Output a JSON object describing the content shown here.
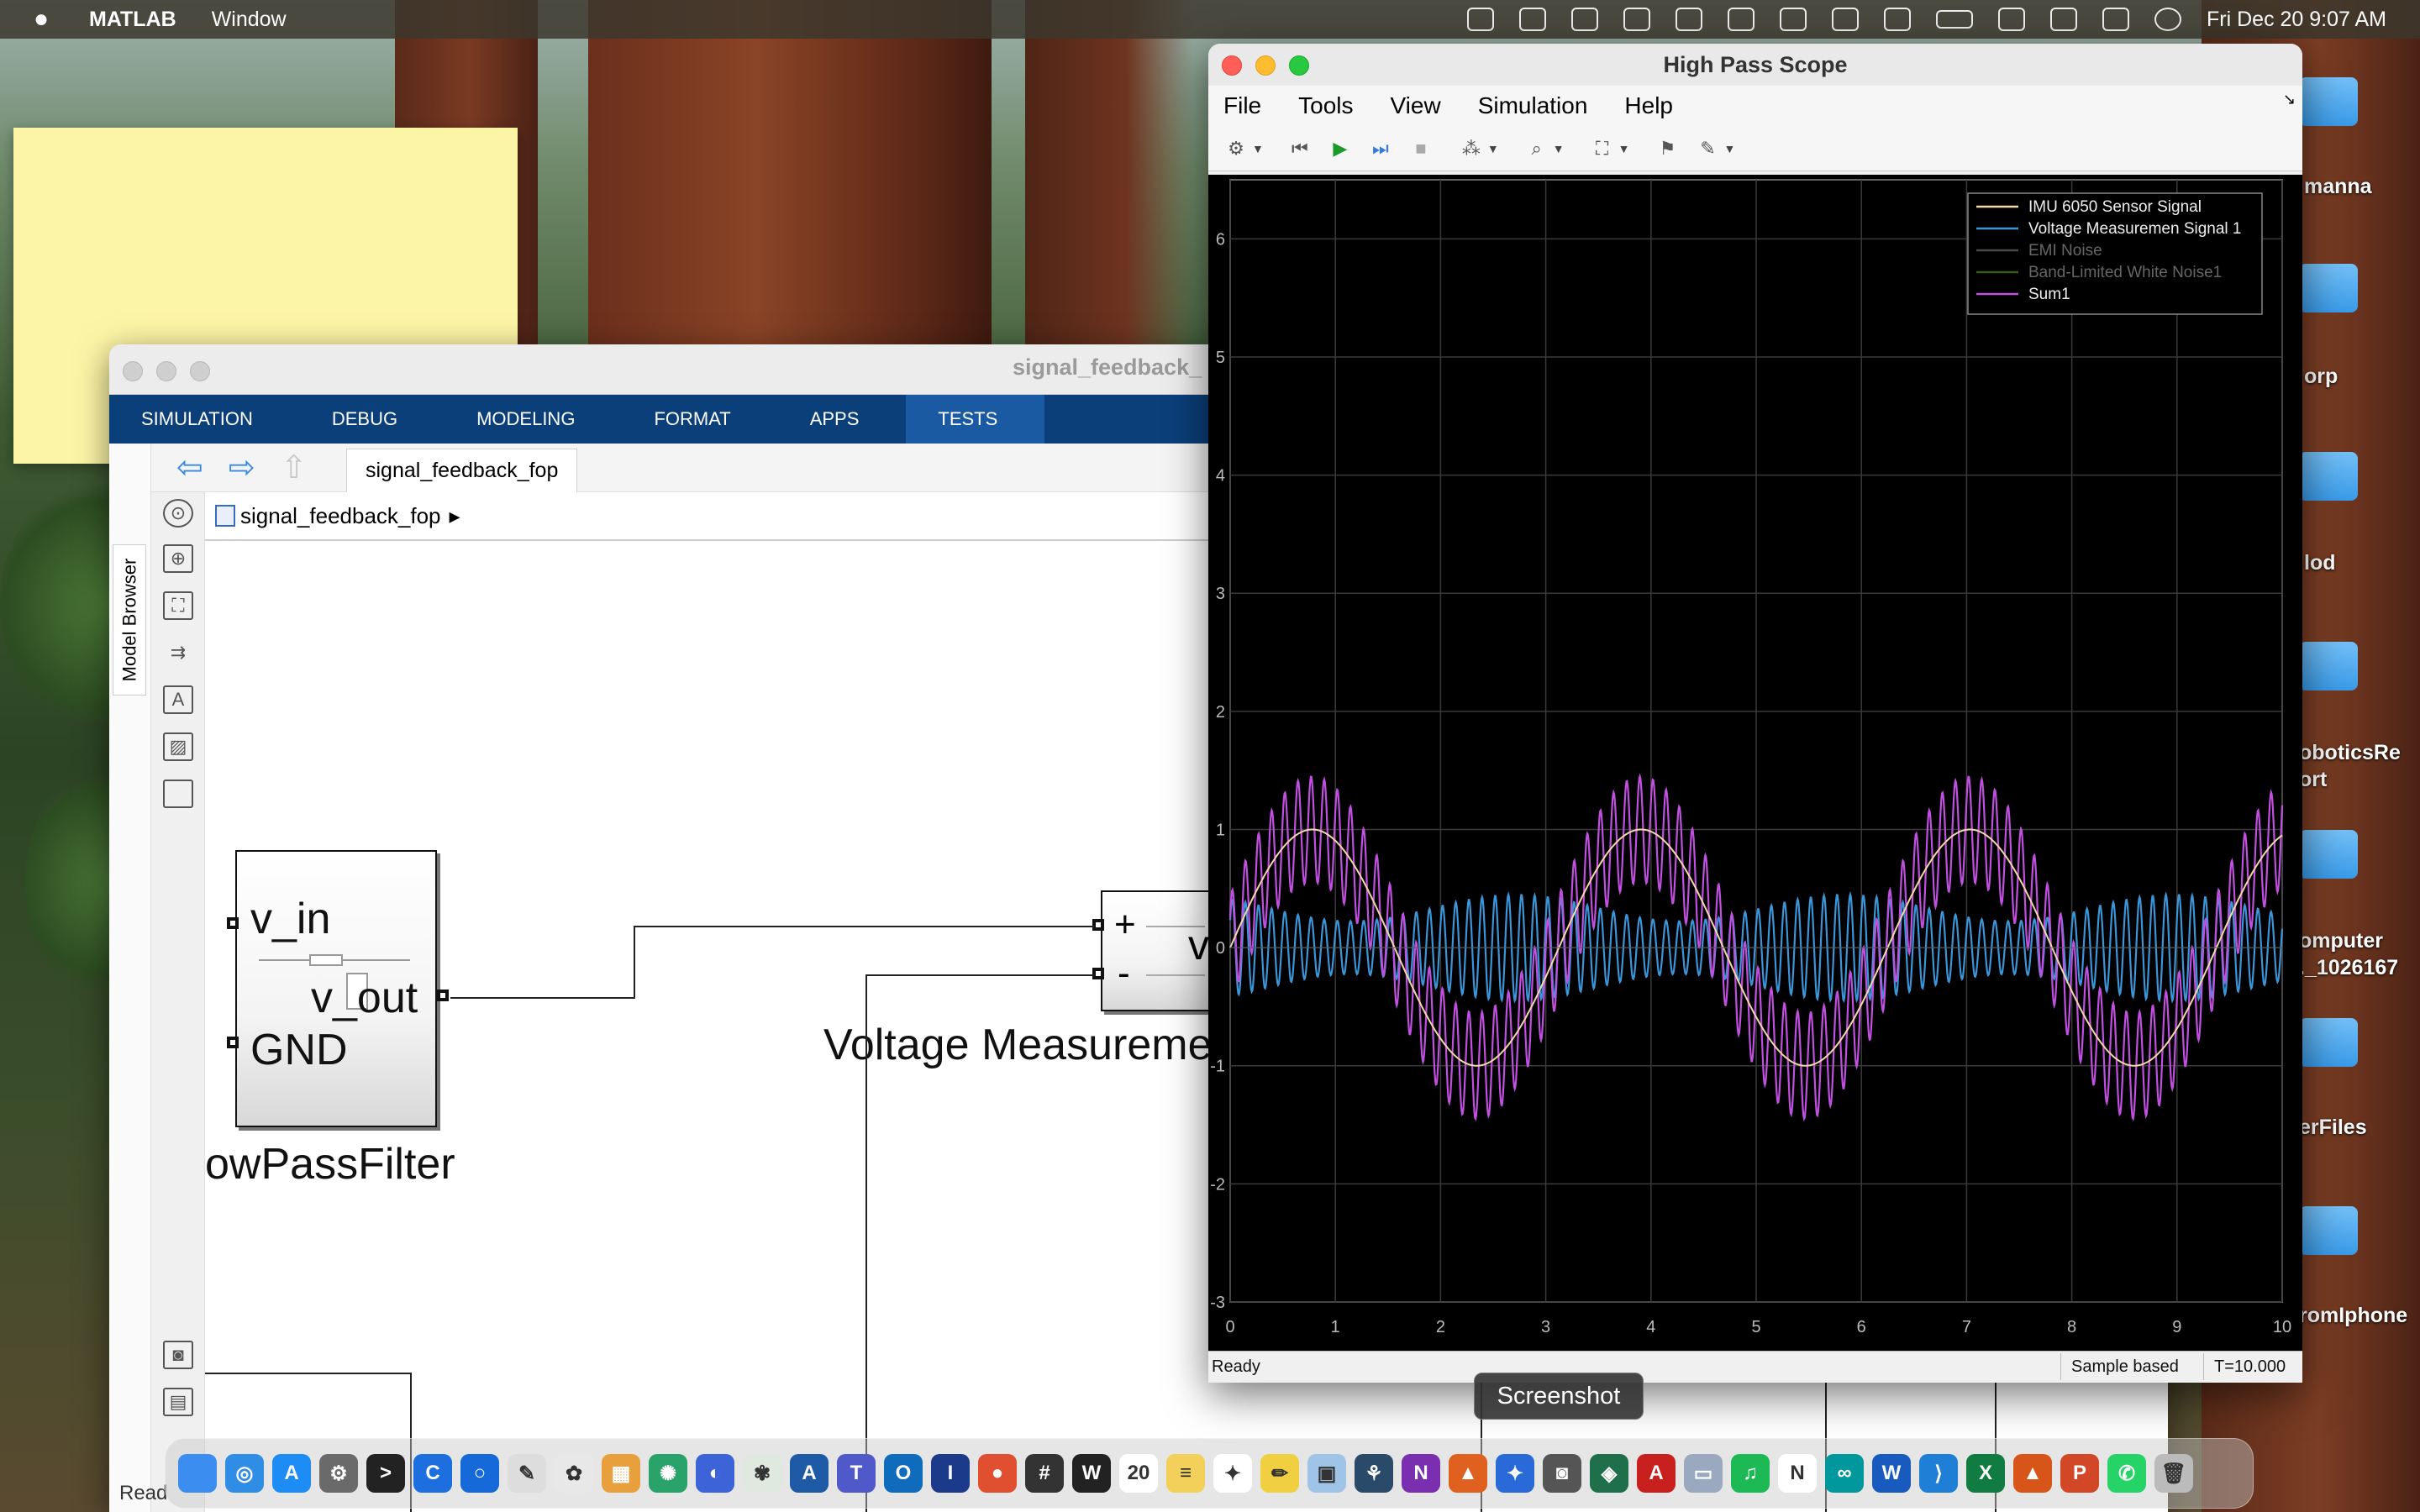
{
  "menubar": {
    "app": "MATLAB",
    "items": [
      "Window"
    ],
    "clock": "Fri Dec 20  9:07 AM"
  },
  "simulink": {
    "window_title": "signal_feedback_",
    "tabs": [
      "SIMULATION",
      "DEBUG",
      "MODELING",
      "FORMAT",
      "APPS",
      "TESTS"
    ],
    "active_tab": "TESTS",
    "doc_tab": "signal_feedback_fop",
    "breadcrumb": "signal_feedback_fop",
    "side_label": "Model Browser",
    "blocks": {
      "filter": {
        "in_label": "v_in",
        "out_label": "v_out",
        "gnd_label": "GND",
        "name": "owPassFilter"
      },
      "voltage": {
        "plus": "+",
        "minus": "-",
        "v": "v",
        "name": "Voltage Measurement"
      }
    },
    "status": "Read"
  },
  "scope": {
    "title": "High Pass Scope",
    "menu": [
      "File",
      "Tools",
      "View",
      "Simulation",
      "Help"
    ],
    "status_left": "Ready",
    "status_mode": "Sample based",
    "status_time": "T=10.000"
  },
  "chart_data": {
    "type": "line",
    "title": "",
    "xlabel": "",
    "ylabel": "",
    "xlim": [
      0,
      10
    ],
    "ylim": [
      -3,
      6.5
    ],
    "xticks": [
      0,
      1,
      2,
      3,
      4,
      5,
      6,
      7,
      8,
      9,
      10
    ],
    "yticks": [
      -3,
      -2,
      -1,
      0,
      1,
      2,
      3,
      4,
      5,
      6
    ],
    "grid": true,
    "legend_position": "top-right",
    "series": [
      {
        "name": "IMU 6050 Sensor Signal",
        "color": "#f3d9a8",
        "freq": 0.32,
        "amp": 1.0
      },
      {
        "name": "Voltage Measuremen Signal 1",
        "color": "#3a95d9",
        "freq": 8.0,
        "amp": 0.45
      },
      {
        "name": "EMI Noise",
        "color": "#4a4a4a"
      },
      {
        "name": "Band-Limited White Noise1",
        "color": "#3a5a1a"
      },
      {
        "name": "Sum1",
        "color": "#c14fe0"
      }
    ]
  },
  "desktop_icons": [
    "manna",
    "orp",
    "lod",
    "oboticsRe\nort",
    "omputer\n._1026167",
    "erFiles",
    "romIphone"
  ],
  "tooltip": "Screenshot",
  "dock": [
    {
      "name": "finder-icon",
      "color": "#3b8ef0",
      "glyph": ""
    },
    {
      "name": "safari-icon",
      "color": "#2f8de6",
      "glyph": "◎"
    },
    {
      "name": "appstore-icon",
      "color": "#1d8cf5",
      "glyph": "A"
    },
    {
      "name": "system-settings-icon",
      "color": "#6a6a6a",
      "glyph": "⚙"
    },
    {
      "name": "terminal-icon",
      "color": "#222",
      "glyph": ">"
    },
    {
      "name": "app-c-icon",
      "color": "#1d6fe0",
      "glyph": "C"
    },
    {
      "name": "app-circle-icon",
      "color": "#1569d8",
      "glyph": "○"
    },
    {
      "name": "textedit-icon",
      "color": "#ddd",
      "glyph": "✎"
    },
    {
      "name": "brain-icon",
      "color": "#e8e8e8",
      "glyph": "✿"
    },
    {
      "name": "launchpad-icon",
      "color": "#e7a03c",
      "glyph": "▦"
    },
    {
      "name": "pattern-icon",
      "color": "#2aa36b",
      "glyph": "✺"
    },
    {
      "name": "arc-icon",
      "color": "#3d63d8",
      "glyph": "◐"
    },
    {
      "name": "chatgpt-desk-icon",
      "color": "#dfe9e0",
      "glyph": "✾"
    },
    {
      "name": "font-icon",
      "color": "#1f5aa7",
      "glyph": "A"
    },
    {
      "name": "teams-icon",
      "color": "#5059c9",
      "glyph": "T"
    },
    {
      "name": "outlook-icon",
      "color": "#0f6cbd",
      "glyph": "O"
    },
    {
      "name": "ibm-icon",
      "color": "#1b3a8a",
      "glyph": "I"
    },
    {
      "name": "circles-icon",
      "color": "#e05030",
      "glyph": "●"
    },
    {
      "name": "calculator-icon",
      "color": "#333",
      "glyph": "#"
    },
    {
      "name": "word-w-icon",
      "color": "#222",
      "glyph": "W"
    },
    {
      "name": "calendar-icon",
      "color": "#fff",
      "glyph": "20"
    },
    {
      "name": "notes-icon",
      "color": "#f3d05a",
      "glyph": "≡"
    },
    {
      "name": "openai-icon",
      "color": "#fff",
      "glyph": "✦"
    },
    {
      "name": "pencil-icon",
      "color": "#f0d040",
      "glyph": "✏"
    },
    {
      "name": "preview-icon",
      "color": "#9fc4e8",
      "glyph": "▣"
    },
    {
      "name": "butterfly-icon",
      "color": "#2a4a6a",
      "glyph": "⚘"
    },
    {
      "name": "onenote-icon",
      "color": "#7a2fb0",
      "glyph": "N"
    },
    {
      "name": "matlab-icon",
      "color": "#e06020",
      "glyph": "▲"
    },
    {
      "name": "sparkle-icon",
      "color": "#2a6ad8",
      "glyph": "✦"
    },
    {
      "name": "screenshot-icon",
      "color": "#555",
      "glyph": "◙"
    },
    {
      "name": "vpn-icon",
      "color": "#1f6f4a",
      "glyph": "◈"
    },
    {
      "name": "acrobat-icon",
      "color": "#c8201e",
      "glyph": "A"
    },
    {
      "name": "disk-icon",
      "color": "#9aa9c0",
      "glyph": "▭"
    },
    {
      "name": "spotify-icon",
      "color": "#1db954",
      "glyph": "♫"
    },
    {
      "name": "notion-icon",
      "color": "#fff",
      "glyph": "N"
    },
    {
      "name": "arduino-icon",
      "color": "#00979d",
      "glyph": "∞"
    },
    {
      "name": "word-icon",
      "color": "#185abd",
      "glyph": "W"
    },
    {
      "name": "vscode-icon",
      "color": "#1f7fd6",
      "glyph": "⟩"
    },
    {
      "name": "excel-icon",
      "color": "#107c41",
      "glyph": "X"
    },
    {
      "name": "matlab2-icon",
      "color": "#d8551a",
      "glyph": "▲"
    },
    {
      "name": "powerpoint-icon",
      "color": "#d24726",
      "glyph": "P"
    },
    {
      "name": "whatsapp-icon",
      "color": "#25d366",
      "glyph": "✆"
    },
    {
      "name": "trash-icon",
      "color": "#bbb",
      "glyph": "🗑"
    }
  ]
}
